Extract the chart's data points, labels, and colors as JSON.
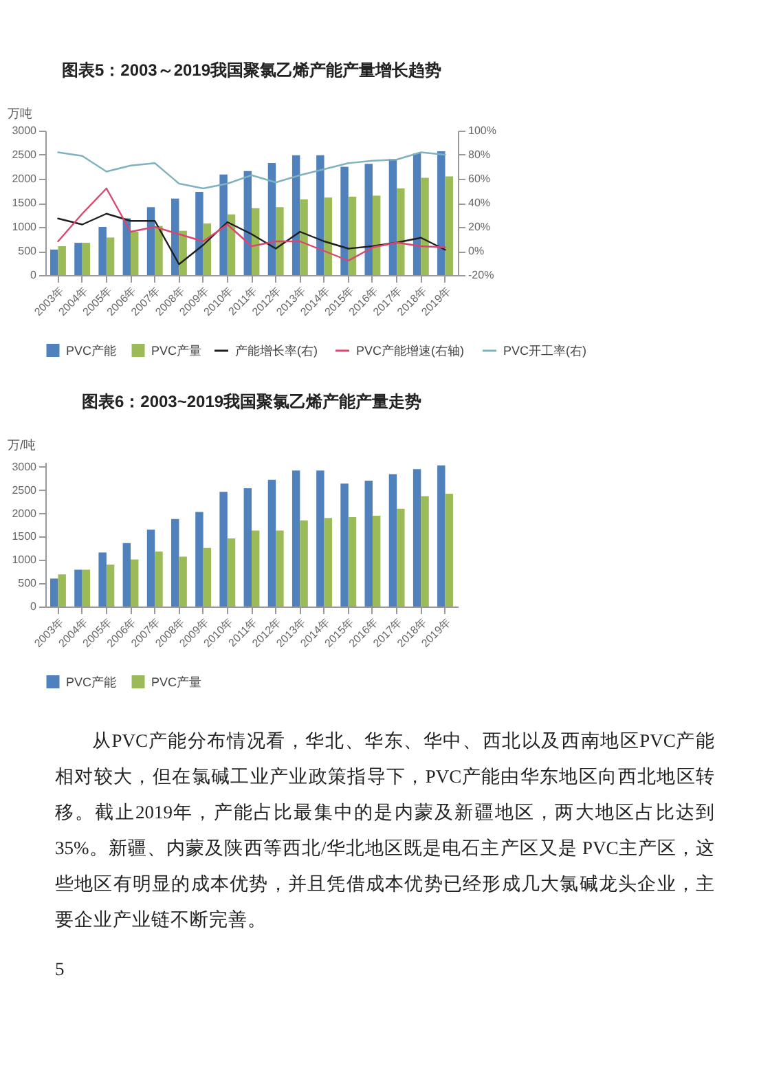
{
  "chart_data": [
    {
      "type": "bar",
      "title": "图表5：2003～2019我国聚氯乙烯产能产量增长趋势",
      "ylabel": "万吨",
      "categories": [
        "2003年",
        "2004年",
        "2005年",
        "2006年",
        "2007年",
        "2008年",
        "2009年",
        "2010年",
        "2011年",
        "2012年",
        "2013年",
        "2014年",
        "2015年",
        "2016年",
        "2017年",
        "2018年",
        "2019年"
      ],
      "series": [
        {
          "name": "PVC产能",
          "type": "bar",
          "color": "#4f81bd",
          "values": [
            530,
            670,
            1000,
            1180,
            1410,
            1590,
            1730,
            2090,
            2160,
            2330,
            2490,
            2490,
            2250,
            2310,
            2410,
            2530,
            2570
          ]
        },
        {
          "name": "PVC产量",
          "type": "bar",
          "color": "#9bbb59",
          "values": [
            600,
            670,
            780,
            900,
            1020,
            920,
            1070,
            1260,
            1390,
            1410,
            1570,
            1610,
            1630,
            1650,
            1800,
            2020,
            2050
          ]
        },
        {
          "name": "产能增长率(右)",
          "type": "line",
          "axis": "y2",
          "color": "#1f1f1f",
          "values": [
            27,
            22,
            31,
            25,
            25,
            -11,
            5,
            24,
            14,
            2,
            16,
            8,
            2,
            4,
            7,
            11,
            1
          ]
        },
        {
          "name": "PVC产能增速(右轴)",
          "type": "line",
          "axis": "y2",
          "color": "#d9466f",
          "values": [
            8,
            31,
            52,
            16,
            20,
            14,
            8,
            22,
            4,
            8,
            8,
            0,
            -8,
            3,
            7,
            4,
            3
          ]
        },
        {
          "name": "PVC开工率(右)",
          "type": "line",
          "axis": "y2",
          "color": "#7fb2bf",
          "values": [
            82,
            79,
            66,
            71,
            73,
            56,
            52,
            56,
            63,
            57,
            63,
            68,
            73,
            75,
            76,
            82,
            80
          ]
        }
      ],
      "ylim": [
        0,
        3000
      ],
      "yticks": [
        0,
        500,
        1000,
        1500,
        2000,
        2500,
        3000
      ],
      "y2lim": [
        -20,
        100
      ],
      "y2ticks": [
        {
          "value": -20,
          "label": "-20%"
        },
        {
          "value": 0,
          "label": "0%"
        },
        {
          "value": 20,
          "label": "20%"
        },
        {
          "value": 40,
          "label": "40%"
        },
        {
          "value": 60,
          "label": "60%"
        },
        {
          "value": 80,
          "label": "80%"
        },
        {
          "value": 100,
          "label": "100%"
        }
      ],
      "legend": "bottom",
      "grid": false
    },
    {
      "type": "bar",
      "title": "图表6：2003~2019我国聚氯乙烯产能产量走势",
      "ylabel": "万/吨",
      "categories": [
        "2003年",
        "2004年",
        "2005年",
        "2006年",
        "2007年",
        "2008年",
        "2009年",
        "2010年",
        "2011年",
        "2012年",
        "2013年",
        "2014年",
        "2015年",
        "2016年",
        "2017年",
        "2018年",
        "2019年"
      ],
      "series": [
        {
          "name": "PVC产能",
          "color": "#4f81bd",
          "values": [
            600,
            790,
            1160,
            1360,
            1650,
            1880,
            2030,
            2460,
            2540,
            2720,
            2920,
            2920,
            2640,
            2700,
            2840,
            2950,
            3030
          ]
        },
        {
          "name": "PVC产量",
          "color": "#9bbb59",
          "values": [
            690,
            790,
            900,
            1010,
            1180,
            1070,
            1260,
            1460,
            1630,
            1630,
            1850,
            1900,
            1920,
            1950,
            2100,
            2370,
            2420
          ]
        }
      ],
      "ylim": [
        0,
        3100
      ],
      "yticks": [
        0,
        500,
        1000,
        1500,
        2000,
        2500,
        3000
      ],
      "legend": "bottom",
      "grid": false,
      "annotations": [
        "从PVC产能分布情况看，华北、华东、华中、西北以及西南地区PVC产能相对较大，但在氯碱工业产业政策指导下，PVC产能由华东地区向西北地区转移。截止2019年，产能占比最集中的是内蒙及新疆地区，两大地区占比达到35%。新疆、内蒙及陕西等西北/华北地区既是电石主产区又是 PVC主产区，这些地区有明显的成本优势，并且凭借成本优势已经形成几大氯碱龙头企业，主要企业产业链不断完善。",
        "5"
      ]
    }
  ]
}
